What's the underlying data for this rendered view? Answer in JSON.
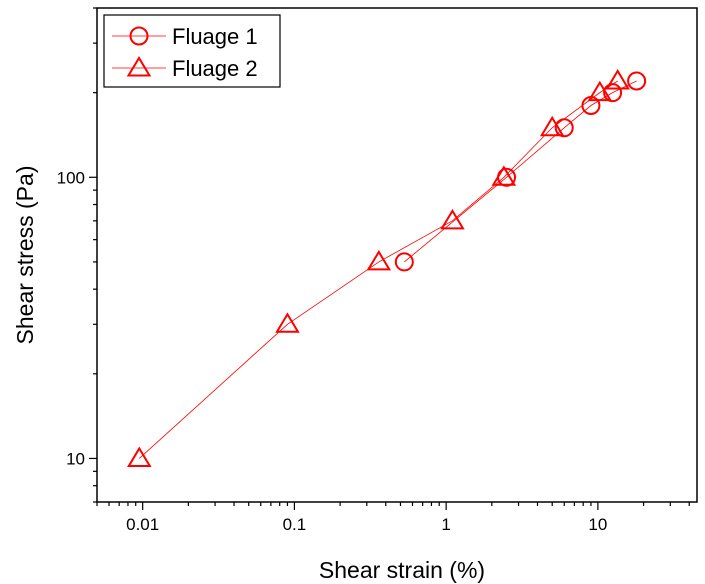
{
  "chart_data": {
    "type": "scatter",
    "xlabel": "Shear strain (%)",
    "ylabel": "Shear stress (Pa)",
    "x_scale": "log",
    "y_scale": "log",
    "xlim": [
      0.005,
      45
    ],
    "ylim": [
      7,
      400
    ],
    "x_ticks": [
      {
        "value": 0.01,
        "label": "0.01"
      },
      {
        "value": 0.1,
        "label": "0.1"
      },
      {
        "value": 1,
        "label": "1"
      },
      {
        "value": 10,
        "label": "10"
      }
    ],
    "y_ticks": [
      {
        "value": 10,
        "label": "10"
      },
      {
        "value": 100,
        "label": "100"
      }
    ],
    "grid": false,
    "legend_position": "top-left",
    "colors": {
      "series": "#ff0000",
      "axis": "#000000"
    },
    "series": [
      {
        "name": "Fluage 1",
        "marker": "circle",
        "x": [
          0.53,
          2.5,
          6.0,
          9.0,
          12.5,
          18.0
        ],
        "y": [
          50,
          100,
          150,
          180,
          200,
          220
        ]
      },
      {
        "name": "Fluage 2",
        "marker": "triangle",
        "x": [
          0.0095,
          0.09,
          0.36,
          1.1,
          2.4,
          5.0,
          10.3,
          13.5
        ],
        "y": [
          10,
          30,
          50,
          70,
          100,
          150,
          200,
          220
        ]
      }
    ]
  }
}
